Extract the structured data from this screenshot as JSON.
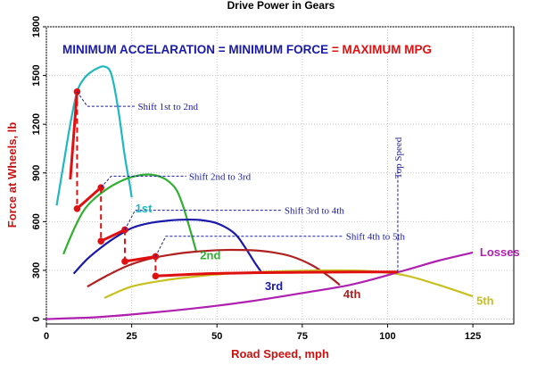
{
  "chart_data": {
    "type": "line",
    "title": "Drive Power in Gears",
    "headline": {
      "part1": "MINIMUM ACCELARATION = MINIMUM FORCE",
      "part2": " = MAXIMUM MPG",
      "color1": "#1a1aaa",
      "color2": "#e01010"
    },
    "xlabel": "Road Speed, mph",
    "ylabel": "Force at Wheels, lb",
    "xlim": [
      0,
      137
    ],
    "ylim": [
      -30,
      1800
    ],
    "xticks": [
      0,
      25,
      50,
      75,
      100,
      125
    ],
    "yticks": [
      0,
      300,
      600,
      900,
      1200,
      1500,
      1800
    ],
    "grid": true,
    "series": [
      {
        "name": "1st",
        "color": "#20b8c0",
        "label_color": "#20b8c0",
        "x": [
          3,
          5,
          7,
          9,
          11,
          13,
          15,
          17,
          19,
          21,
          23,
          24.5,
          25
        ],
        "y": [
          700,
          950,
          1200,
          1400,
          1480,
          1520,
          1545,
          1555,
          1510,
          1300,
          1000,
          820,
          750
        ]
      },
      {
        "name": "2nd",
        "color": "#30b030",
        "label_color": "#30b030",
        "x": [
          5,
          8,
          11,
          14,
          17,
          20,
          23,
          26,
          29,
          32,
          35,
          38,
          40,
          42,
          44
        ],
        "y": [
          400,
          550,
          670,
          740,
          790,
          830,
          860,
          880,
          890,
          885,
          860,
          800,
          700,
          560,
          410
        ]
      },
      {
        "name": "3rd",
        "color": "#1a1aaa",
        "label_color": "#1a1aaa",
        "x": [
          8,
          12,
          16,
          20,
          25,
          30,
          35,
          40,
          45,
          50,
          55,
          58,
          61,
          63
        ],
        "y": [
          280,
          370,
          440,
          500,
          560,
          590,
          605,
          612,
          610,
          590,
          530,
          450,
          350,
          290
        ]
      },
      {
        "name": "4th",
        "color": "#b02020",
        "label_color": "#b02020",
        "x": [
          12,
          18,
          24,
          30,
          36,
          42,
          48,
          54,
          60,
          66,
          72,
          78,
          83,
          86
        ],
        "y": [
          200,
          270,
          330,
          370,
          395,
          412,
          422,
          426,
          424,
          412,
          385,
          330,
          260,
          210
        ]
      },
      {
        "name": "5th",
        "color": "#c8c020",
        "label_color": "#c8c020",
        "x": [
          17,
          25,
          35,
          45,
          55,
          65,
          75,
          85,
          95,
          105,
          115,
          125
        ],
        "y": [
          130,
          200,
          240,
          265,
          282,
          292,
          298,
          300,
          295,
          270,
          210,
          140
        ]
      },
      {
        "name": "Losses",
        "color": "#b020b0",
        "label_color": "#b020b0",
        "x": [
          0,
          15,
          30,
          45,
          60,
          75,
          90,
          105,
          115,
          125
        ],
        "y": [
          0,
          12,
          38,
          70,
          110,
          160,
          215,
          300,
          360,
          410
        ]
      }
    ],
    "optimal_path": {
      "color": "#e01010",
      "segments": [
        {
          "x": [
            7,
            9
          ],
          "y": [
            860,
            1400
          ]
        },
        {
          "x": [
            9,
            16
          ],
          "y": [
            680,
            810
          ]
        },
        {
          "x": [
            16,
            23
          ],
          "y": [
            480,
            550
          ]
        },
        {
          "x": [
            23,
            32
          ],
          "y": [
            355,
            385
          ]
        },
        {
          "x": [
            32,
            45,
            60,
            75,
            90,
            103
          ],
          "y": [
            265,
            278,
            285,
            288,
            290,
            290
          ]
        }
      ],
      "markers": [
        {
          "x": 9,
          "y": 1400
        },
        {
          "x": 9,
          "y": 680
        },
        {
          "x": 16,
          "y": 810
        },
        {
          "x": 16,
          "y": 480
        },
        {
          "x": 23,
          "y": 550
        },
        {
          "x": 23,
          "y": 355
        },
        {
          "x": 32,
          "y": 385
        },
        {
          "x": 32,
          "y": 265
        }
      ],
      "shift_drops": [
        {
          "x": 9,
          "y_from": 1400,
          "y_to": 680
        },
        {
          "x": 16,
          "y_from": 810,
          "y_to": 480
        },
        {
          "x": 23,
          "y_from": 550,
          "y_to": 355
        },
        {
          "x": 32,
          "y_from": 385,
          "y_to": 265
        }
      ]
    },
    "annotations": [
      {
        "text": "Shift 1st to 2nd",
        "from": [
          9,
          1400
        ],
        "elbow": [
          12,
          1310
        ],
        "to": [
          26,
          1310
        ]
      },
      {
        "text": "Shift 2nd to 3rd",
        "from": [
          16,
          810
        ],
        "elbow": [
          19,
          880
        ],
        "to": [
          41,
          880
        ]
      },
      {
        "text": "Shift 3rd to 4th",
        "from": [
          23,
          550
        ],
        "elbow": [
          26,
          670
        ],
        "to": [
          69,
          670
        ]
      },
      {
        "text": "Shift 4th to 5th",
        "from": [
          32,
          385
        ],
        "elbow": [
          35,
          510
        ],
        "to": [
          87,
          510
        ]
      }
    ],
    "top_speed": {
      "text": "Top Speed",
      "x": 103,
      "y_from": 290,
      "y_to": 930
    }
  }
}
